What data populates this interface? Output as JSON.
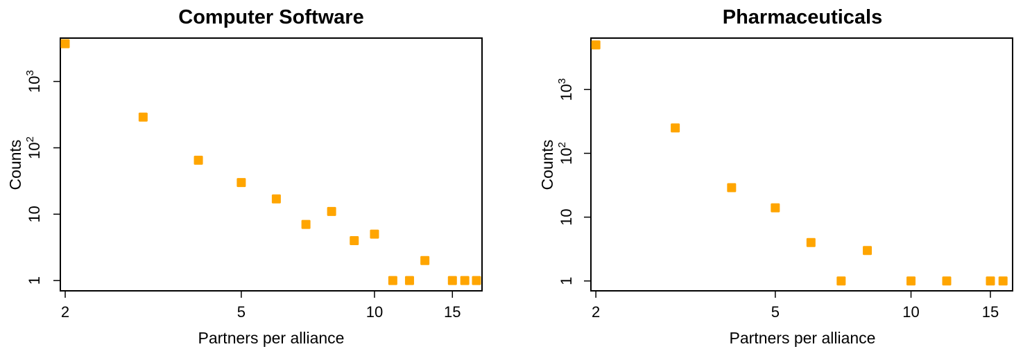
{
  "chart_data": [
    {
      "type": "scatter",
      "title": "Computer Software",
      "xlabel": "Partners per alliance",
      "ylabel": "Counts",
      "x_scale": "log",
      "y_scale": "log",
      "xlim": [
        1.95,
        17.5
      ],
      "ylim": [
        0.7,
        4500
      ],
      "x_ticks": [
        2,
        5,
        10,
        15
      ],
      "x_tick_labels": [
        "2",
        "5",
        "10",
        "15"
      ],
      "y_ticks": [
        1,
        10,
        100,
        1000
      ],
      "y_tick_labels": [
        "1",
        "10",
        "10^2",
        "10^3"
      ],
      "grid": false,
      "marker_color": "#FFA500",
      "points": [
        {
          "x": 2,
          "y": 3700
        },
        {
          "x": 3,
          "y": 290
        },
        {
          "x": 4,
          "y": 65
        },
        {
          "x": 5,
          "y": 30
        },
        {
          "x": 6,
          "y": 17
        },
        {
          "x": 7,
          "y": 7
        },
        {
          "x": 8,
          "y": 11
        },
        {
          "x": 9,
          "y": 4
        },
        {
          "x": 10,
          "y": 5
        },
        {
          "x": 11,
          "y": 1
        },
        {
          "x": 12,
          "y": 1
        },
        {
          "x": 13,
          "y": 2
        },
        {
          "x": 15,
          "y": 1
        },
        {
          "x": 16,
          "y": 1
        },
        {
          "x": 17,
          "y": 1
        }
      ]
    },
    {
      "type": "scatter",
      "title": "Pharmaceuticals",
      "xlabel": "Partners per alliance",
      "ylabel": "Counts",
      "x_scale": "log",
      "y_scale": "log",
      "xlim": [
        1.95,
        16.8
      ],
      "ylim": [
        0.7,
        6400
      ],
      "x_ticks": [
        2,
        5,
        10,
        15
      ],
      "x_tick_labels": [
        "2",
        "5",
        "10",
        "15"
      ],
      "y_ticks": [
        1,
        10,
        100,
        1000
      ],
      "y_tick_labels": [
        "1",
        "10",
        "10^2",
        "10^3"
      ],
      "grid": false,
      "marker_color": "#FFA500",
      "points": [
        {
          "x": 2,
          "y": 5000
        },
        {
          "x": 3,
          "y": 250
        },
        {
          "x": 4,
          "y": 29
        },
        {
          "x": 5,
          "y": 14
        },
        {
          "x": 6,
          "y": 4
        },
        {
          "x": 7,
          "y": 1
        },
        {
          "x": 8,
          "y": 3
        },
        {
          "x": 10,
          "y": 1
        },
        {
          "x": 12,
          "y": 1
        },
        {
          "x": 15,
          "y": 1
        },
        {
          "x": 16,
          "y": 1
        }
      ]
    }
  ]
}
